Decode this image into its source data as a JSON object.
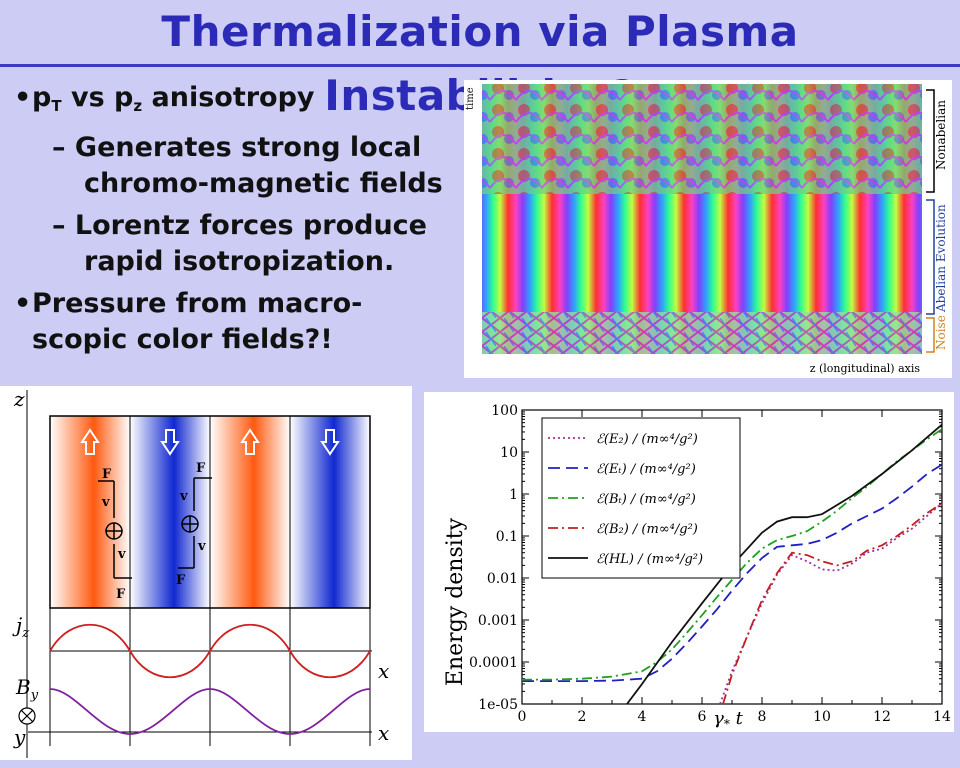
{
  "slide": {
    "title": "Thermalization via Plasma Instabilities?",
    "bullets": [
      {
        "text_a": "p",
        "sub_a": "T",
        "text_b": " vs p",
        "sub_b": "z",
        "text_c": " anisotropy"
      },
      {
        "dash": "–",
        "line1": "Generates strong local",
        "line2": "chromo-magnetic fields"
      },
      {
        "dash": "–",
        "line1": "Lorentz forces produce",
        "line2": "rapid isotropization."
      },
      {
        "line1": "Pressure from macro-",
        "line2": "scopic color fields?!"
      }
    ]
  },
  "simulation_panel": {
    "time_label": "time",
    "x_axis_label": "z (longitudinal) axis",
    "phases": [
      "Nonabelian",
      "Abelian Evolution",
      "Noise"
    ]
  },
  "filament_diagram": {
    "z_label": "z",
    "jz_label": "j",
    "jz_sub": "z",
    "By_label": "B",
    "By_sub": "y",
    "y_label": "y",
    "x_label": "x",
    "force_label": "F",
    "velocity_label": "v"
  },
  "energy_plot": {
    "ylabel": "Energy density",
    "xlabel_main": "γ",
    "xlabel_sub": "*",
    "xlabel_tail": " t",
    "yticks": [
      "100",
      "10",
      "1",
      "0.1",
      "0.01",
      "0.001",
      "0.0001",
      "1e-05"
    ],
    "xticks": [
      "0",
      "2",
      "4",
      "6",
      "8",
      "10",
      "12",
      "14"
    ],
    "legend": [
      "ℰ(E₂) / (m∞⁴/g²)",
      "ℰ(Eₜ) / (m∞⁴/g²)",
      "ℰ(Bₜ) / (m∞⁴/g²)",
      "ℰ(B₂) / (m∞⁴/g²)",
      "ℰ(HL) / (m∞⁴/g²)"
    ]
  },
  "chart_data": {
    "type": "line",
    "ylabel": "Energy density",
    "xlabel": "γ* t",
    "xlim": [
      0,
      14
    ],
    "ylim": [
      1e-05,
      100
    ],
    "yscale": "log",
    "legend_position": "top-left",
    "series": [
      {
        "name": "ℰ(E_z) / (m_∞^4/g^2)",
        "color": "#a030a0",
        "style": "dotted",
        "x": [
          6.6,
          7.0,
          7.5,
          8.0,
          8.5,
          9.0,
          9.5,
          10.0,
          10.5,
          11.0,
          11.5,
          12.0,
          12.5,
          13.0,
          13.5,
          14.0
        ],
        "y": [
          1e-05,
          6e-05,
          0.0004,
          0.0025,
          0.012,
          0.035,
          0.025,
          0.016,
          0.015,
          0.022,
          0.04,
          0.05,
          0.09,
          0.15,
          0.3,
          0.6
        ]
      },
      {
        "name": "ℰ(E_T) / (m_∞^4/g^2)",
        "color": "#2020c0",
        "style": "dashed",
        "x": [
          0,
          1,
          2,
          3,
          4,
          4.5,
          5,
          5.5,
          6,
          6.5,
          7,
          7.5,
          8,
          8.5,
          9,
          9.5,
          10,
          10.5,
          11,
          11.5,
          12,
          12.5,
          13,
          13.5,
          14
        ],
        "y": [
          3.5e-05,
          3.5e-05,
          3.5e-05,
          3.6e-05,
          4e-05,
          6e-05,
          0.00012,
          0.00028,
          0.0007,
          0.0018,
          0.005,
          0.013,
          0.03,
          0.055,
          0.06,
          0.065,
          0.08,
          0.12,
          0.2,
          0.3,
          0.45,
          0.8,
          1.5,
          3.0,
          5.0
        ]
      },
      {
        "name": "ℰ(B_T) / (m_∞^4/g^2)",
        "color": "#20a020",
        "style": "dashdot",
        "x": [
          0,
          1,
          2,
          3,
          4,
          4.5,
          5,
          5.5,
          6,
          6.5,
          7,
          7.5,
          8,
          8.5,
          9,
          9.5,
          10,
          10.5,
          11,
          11.5,
          12,
          12.5,
          13,
          13.5,
          14
        ],
        "y": [
          3.8e-05,
          3.8e-05,
          4e-05,
          4.5e-05,
          6e-05,
          0.0001,
          0.0002,
          0.0005,
          0.0013,
          0.0035,
          0.009,
          0.023,
          0.05,
          0.08,
          0.1,
          0.13,
          0.22,
          0.4,
          0.8,
          1.5,
          3.0,
          6.0,
          11.0,
          20.0,
          35.0
        ]
      },
      {
        "name": "ℰ(B_z) / (m_∞^4/g^2)",
        "color": "#c02020",
        "style": "dashdot",
        "x": [
          6.7,
          7.0,
          7.5,
          8.0,
          8.5,
          9.0,
          9.5,
          10.0,
          10.5,
          11.0,
          11.5,
          12.0,
          12.5,
          13.0,
          13.5,
          14.0
        ],
        "y": [
          1e-05,
          5e-05,
          0.0004,
          0.003,
          0.013,
          0.04,
          0.035,
          0.025,
          0.02,
          0.025,
          0.045,
          0.06,
          0.1,
          0.18,
          0.35,
          0.6
        ]
      },
      {
        "name": "ℰ(HL) / (m_∞^4/g^2)",
        "color": "#111111",
        "style": "solid",
        "x": [
          3.5,
          4.0,
          5.0,
          6.0,
          7.0,
          8.0,
          8.5,
          9.0,
          9.5,
          10.0,
          11.0,
          12.0,
          13.0,
          14.0
        ],
        "y": [
          1e-05,
          3e-05,
          0.0003,
          0.0025,
          0.02,
          0.12,
          0.22,
          0.28,
          0.28,
          0.33,
          0.9,
          3.0,
          11.0,
          45.0
        ]
      }
    ]
  }
}
